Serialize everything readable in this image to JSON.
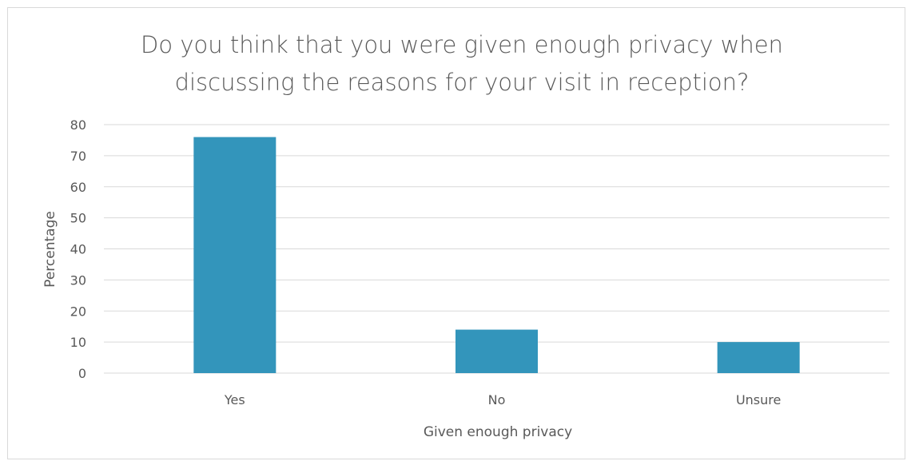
{
  "chart_data": {
    "type": "bar",
    "title_lines": [
      "Do you think that you were given enough privacy when",
      "discussing the reasons for your visit in reception?"
    ],
    "categories": [
      "Yes",
      "No",
      "Unsure"
    ],
    "values": [
      76,
      14,
      10
    ],
    "xlabel": "Given enough privacy",
    "ylabel": "Percentage",
    "ylim": [
      0,
      80
    ],
    "yticks": [
      "0",
      "10",
      "20",
      "30",
      "40",
      "50",
      "60",
      "70",
      "80"
    ],
    "grid": true,
    "legend": "none",
    "bar_color": "#3395bb",
    "grid_color": "#d9d9d9"
  }
}
